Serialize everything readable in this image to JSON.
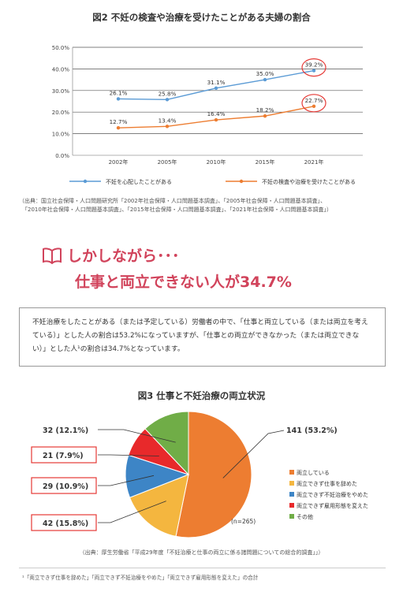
{
  "figure2": {
    "title": "図2 不妊の検査や治療を受けたことがある夫婦の割合",
    "source_lines": [
      "（出典：国立社会保障・人口問題研究所「2002年社会保障・人口問題基本調査」、「2005年社会保障・人口問題基本調査」、",
      "「2010年社会保障・人口問題基本調査」、「2015年社会保障・人口問題基本調査」、「2021年社会保障・人口問題基本調査」）"
    ]
  },
  "headline": {
    "icon": "open-book-icon",
    "line1": "しかしながら･･･",
    "line2": "仕事と両立できない人が34.7%"
  },
  "callout": {
    "text": "不妊治療をしたことがある（または予定している）労働者の中で、「仕事と両立している（または両立を考えている）」とした人の割合は53.2%になっていますが、「仕事との両立ができなかった（または両立できない）」とした人¹の割合は34.7%となっています。"
  },
  "figure3": {
    "title": "図3 仕事と不妊治療の両立状況",
    "n_label": "(n=265)",
    "source": "（出典：厚生労働省「平成29年度「不妊治療と仕事の両立に係る諸問題についての総合的調査」」）"
  },
  "footnote": "¹「両立できず仕事を辞めた」「両立できず不妊治療をやめた」「両立できず雇用形態を変えた」の合計",
  "chart_data": [
    {
      "type": "line",
      "x": [
        "2002年",
        "2005年",
        "2010年",
        "2015年",
        "2021年"
      ],
      "ylim": [
        0,
        50
      ],
      "yticks": [
        "0.0%",
        "10.0%",
        "20.0%",
        "30.0%",
        "40.0%",
        "50.0%"
      ],
      "grid": true,
      "legend_position": "bottom",
      "series": [
        {
          "name": "不妊を心配したことがある",
          "color": "#5b9bd5",
          "values": [
            26.1,
            25.8,
            31.1,
            35.0,
            39.2
          ],
          "labels": [
            "26.1%",
            "25.8%",
            "31.1%",
            "35.0%",
            "39.2%"
          ]
        },
        {
          "name": "不妊の検査や治療を受けたことがある",
          "color": "#ed7d31",
          "values": [
            12.7,
            13.4,
            16.4,
            18.2,
            22.7
          ],
          "labels": [
            "12.7%",
            "13.4%",
            "16.4%",
            "18.2%",
            "22.7%"
          ]
        }
      ],
      "highlight_circle_color": "#e53935"
    },
    {
      "type": "pie",
      "slices": [
        {
          "name": "両立している",
          "value": 141,
          "label": "141 (53.2%)",
          "color": "#ed7d31"
        },
        {
          "name": "両立できず仕事を辞めた",
          "value": 42,
          "label": "42 (15.8%)",
          "color": "#f4b63f"
        },
        {
          "name": "両立できず不妊治療をやめた",
          "value": 29,
          "label": "29 (10.9%)",
          "color": "#3d85c6"
        },
        {
          "name": "両立できず雇用形態を変えた",
          "value": 21,
          "label": "21 (7.9%)",
          "color": "#e8292b"
        },
        {
          "name": "その他",
          "value": 32,
          "label": "32 (12.1%)",
          "color": "#70ad47"
        }
      ],
      "boxed_labels_color": "#e53935",
      "legend_position": "right"
    }
  ]
}
